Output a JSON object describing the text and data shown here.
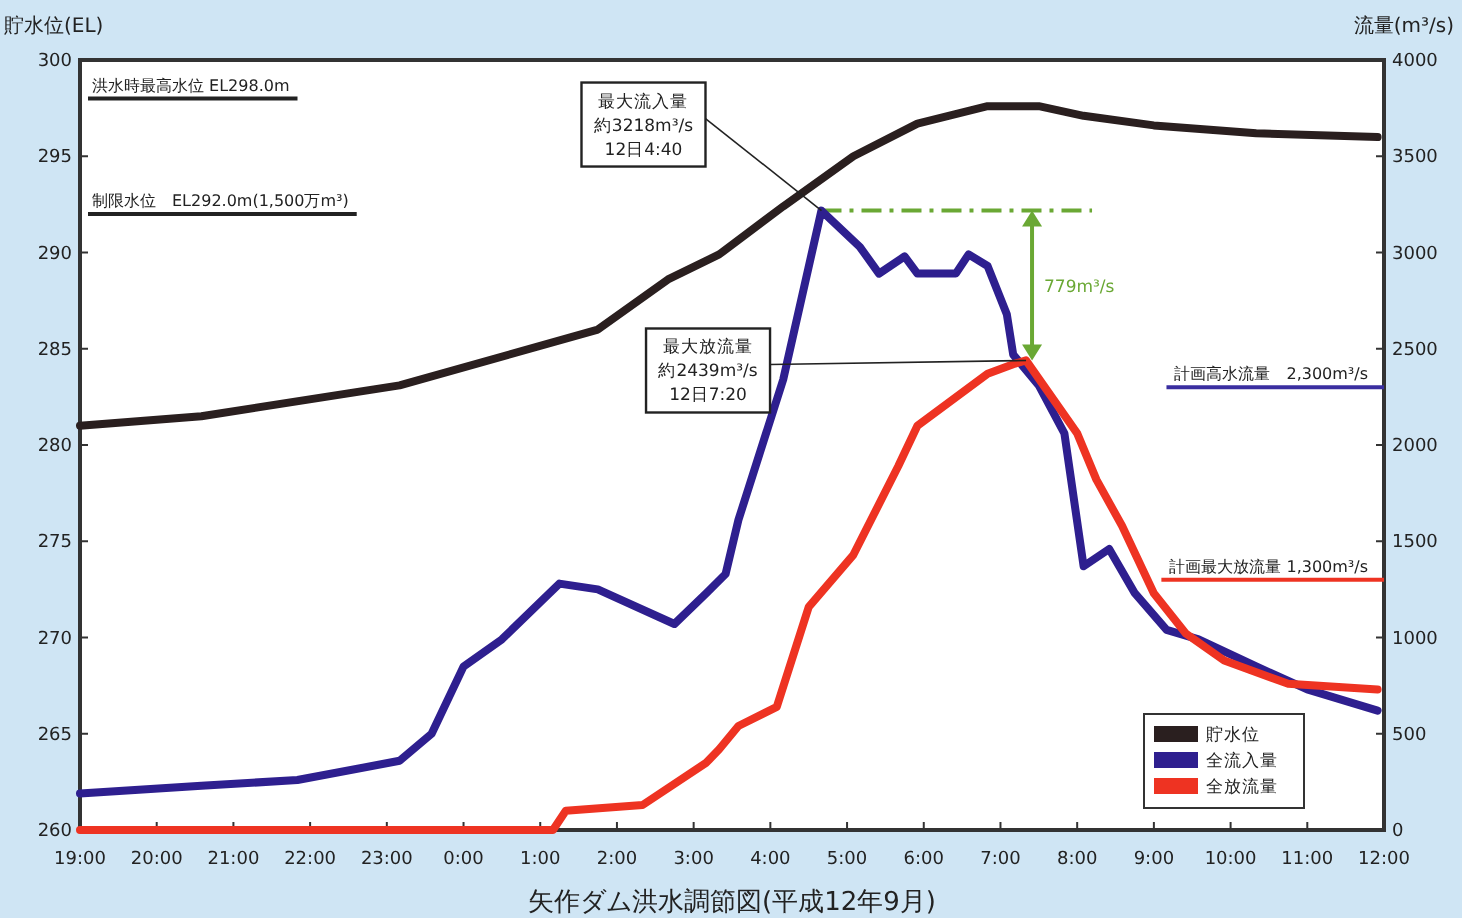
{
  "chart_data": {
    "type": "line",
    "title": "矢作ダム洪水調節図(平成12年9月)",
    "ylabel": "流量(m³/s)",
    "y2label": "貯水位(EL)",
    "xlim": [
      "2000-09-11T19:00",
      "2000-09-12T12:00"
    ],
    "xticks": [
      {
        "value": "2000-09-11T19:00",
        "label": "19:00"
      },
      {
        "value": "2000-09-11T20:00",
        "label": "20:00"
      },
      {
        "value": "2000-09-11T21:00",
        "label": "21:00"
      },
      {
        "value": "2000-09-11T22:00",
        "label": "22:00"
      },
      {
        "value": "2000-09-11T23:00",
        "label": "23:00"
      },
      {
        "value": "2000-09-12T00:00",
        "label": "0:00"
      },
      {
        "value": "2000-09-12T01:00",
        "label": "1:00"
      },
      {
        "value": "2000-09-12T02:00",
        "label": "2:00"
      },
      {
        "value": "2000-09-12T03:00",
        "label": "3:00"
      },
      {
        "value": "2000-09-12T04:00",
        "label": "4:00"
      },
      {
        "value": "2000-09-12T05:00",
        "label": "5:00"
      },
      {
        "value": "2000-09-12T06:00",
        "label": "6:00"
      },
      {
        "value": "2000-09-12T07:00",
        "label": "7:00"
      },
      {
        "value": "2000-09-12T08:00",
        "label": "8:00"
      },
      {
        "value": "2000-09-12T09:00",
        "label": "9:00"
      },
      {
        "value": "2000-09-12T10:00",
        "label": "10:00"
      },
      {
        "value": "2000-09-12T11:00",
        "label": "11:00"
      },
      {
        "value": "2000-09-12T12:00",
        "label": "12:00"
      }
    ],
    "ylim": [
      0,
      4000
    ],
    "yticks": [
      0,
      500,
      1000,
      1500,
      2000,
      2500,
      3000,
      3500,
      4000
    ],
    "y2lim": [
      260,
      300
    ],
    "y2ticks": [
      260,
      265,
      270,
      275,
      280,
      285,
      290,
      295,
      300
    ],
    "legend": "bottom right",
    "series": [
      {
        "name": "貯水位",
        "color": "#2a1f1f",
        "axis": "y2",
        "x": [
          "2000-09-11T19:00",
          "2000-09-11T20:35",
          "2000-09-11T23:10",
          "2000-09-12T01:45",
          "2000-09-12T02:40",
          "2000-09-12T03:20",
          "2000-09-12T04:10",
          "2000-09-12T05:05",
          "2000-09-12T05:55",
          "2000-09-12T06:50",
          "2000-09-12T07:30",
          "2000-09-12T08:05",
          "2000-09-12T09:00",
          "2000-09-12T10:20",
          "2000-09-12T11:55"
        ],
        "values": [
          281.0,
          281.5,
          283.1,
          286.0,
          288.6,
          289.9,
          292.4,
          295.0,
          296.7,
          297.6,
          297.6,
          297.1,
          296.6,
          296.2,
          296.0
        ]
      },
      {
        "name": "全流入量",
        "color": "#2e1f8f",
        "axis": "y",
        "x": [
          "2000-09-11T19:00",
          "2000-09-11T20:35",
          "2000-09-11T21:50",
          "2000-09-11T23:10",
          "2000-09-11T23:35",
          "2000-09-12T00:00",
          "2000-09-12T00:30",
          "2000-09-12T01:15",
          "2000-09-12T01:45",
          "2000-09-12T02:45",
          "2000-09-12T03:10",
          "2000-09-12T03:25",
          "2000-09-12T03:35",
          "2000-09-12T04:10",
          "2000-09-12T04:40",
          "2000-09-12T05:10",
          "2000-09-12T05:25",
          "2000-09-12T05:45",
          "2000-09-12T05:55",
          "2000-09-12T06:25",
          "2000-09-12T06:35",
          "2000-09-12T06:50",
          "2000-09-12T07:05",
          "2000-09-12T07:10",
          "2000-09-12T07:30",
          "2000-09-12T07:50",
          "2000-09-12T08:05",
          "2000-09-12T08:25",
          "2000-09-12T08:45",
          "2000-09-12T09:10",
          "2000-09-12T09:35",
          "2000-09-12T10:20",
          "2000-09-12T11:00",
          "2000-09-12T11:55"
        ],
        "values": [
          190,
          230,
          260,
          360,
          500,
          850,
          990,
          1280,
          1250,
          1070,
          1230,
          1330,
          1610,
          2340,
          3218,
          3030,
          2890,
          2980,
          2890,
          2890,
          2990,
          2930,
          2680,
          2470,
          2310,
          2060,
          1370,
          1460,
          1230,
          1040,
          990,
          850,
          730,
          620
        ]
      },
      {
        "name": "全放流量",
        "color": "#ee3322",
        "axis": "y",
        "x": [
          "2000-09-11T19:00",
          "2000-09-12T01:10",
          "2000-09-12T01:20",
          "2000-09-12T02:20",
          "2000-09-12T03:10",
          "2000-09-12T03:20",
          "2000-09-12T03:35",
          "2000-09-12T04:05",
          "2000-09-12T04:30",
          "2000-09-12T05:05",
          "2000-09-12T05:40",
          "2000-09-12T05:55",
          "2000-09-12T06:50",
          "2000-09-12T07:10",
          "2000-09-12T07:20",
          "2000-09-12T08:00",
          "2000-09-12T08:15",
          "2000-09-12T08:35",
          "2000-09-12T09:00",
          "2000-09-12T09:25",
          "2000-09-12T09:55",
          "2000-09-12T10:45",
          "2000-09-12T11:55"
        ],
        "values": [
          0,
          0,
          100,
          130,
          350,
          420,
          540,
          640,
          1160,
          1430,
          1890,
          2100,
          2370,
          2420,
          2439,
          2060,
          1820,
          1580,
          1230,
          1020,
          880,
          760,
          730
        ]
      }
    ],
    "ref_lines": [
      {
        "axis": "y2",
        "value": 298,
        "label": "洪水時最高水位 EL298.0m",
        "color": "#222222"
      },
      {
        "axis": "y2",
        "value": 292,
        "label": "制限水位　EL292.0m(1,500万m³)",
        "color": "#222222"
      },
      {
        "axis": "y",
        "value": 2300,
        "label": "計画高水流量　2,300m³/s",
        "color": "#3a2ea0"
      },
      {
        "axis": "y",
        "value": 1300,
        "label": "計画最大放流量 1,300m³/s",
        "color": "#ee3322"
      },
      {
        "axis": "y",
        "value": 3218,
        "color": "#6aa834",
        "line_style": "dashdot"
      }
    ],
    "annotations": [
      {
        "text": "最大流入量約3218m³/s12日4:40",
        "x": "2000-09-12T04:40",
        "y": 3218
      },
      {
        "text": "最大放流量約2439m³/s12日7:20",
        "x": "2000-09-12T07:20",
        "y": 2439
      },
      "779m³/s"
    ]
  }
}
